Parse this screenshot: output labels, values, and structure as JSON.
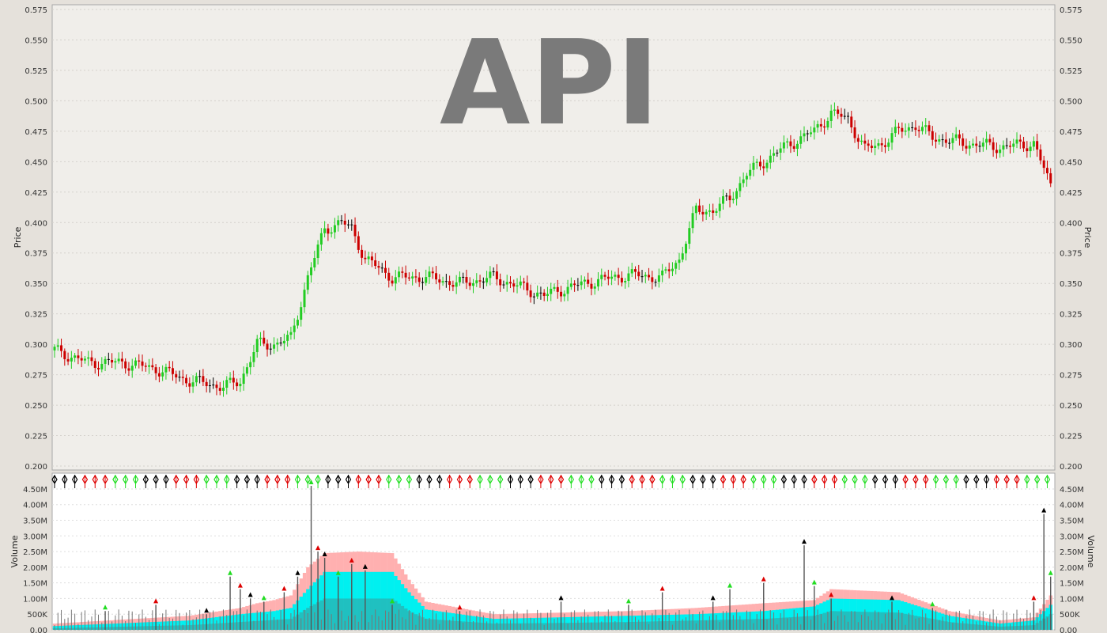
{
  "chart_data": [
    {
      "type": "candlestick",
      "title": "API",
      "ylabel": "Price",
      "ylim": [
        0.2,
        0.575
      ],
      "yticks": [
        "0.200",
        "0.225",
        "0.250",
        "0.275",
        "0.300",
        "0.325",
        "0.350",
        "0.375",
        "0.400",
        "0.425",
        "0.450",
        "0.475",
        "0.500",
        "0.525",
        "0.550",
        "0.575"
      ],
      "grid": true,
      "colors": {
        "up": "#22cc22",
        "down": "#cc0000",
        "flat": "#000000",
        "background": "#f0eeea",
        "grid": "#cccccc"
      },
      "anchors": [
        [
          0,
          0.295
        ],
        [
          10,
          0.285
        ],
        [
          20,
          0.285
        ],
        [
          30,
          0.28
        ],
        [
          35,
          0.275
        ],
        [
          40,
          0.27
        ],
        [
          45,
          0.268
        ],
        [
          50,
          0.265
        ],
        [
          55,
          0.27
        ],
        [
          60,
          0.3
        ],
        [
          65,
          0.3
        ],
        [
          70,
          0.305
        ],
        [
          75,
          0.355
        ],
        [
          80,
          0.395
        ],
        [
          85,
          0.4
        ],
        [
          88,
          0.395
        ],
        [
          92,
          0.37
        ],
        [
          100,
          0.355
        ],
        [
          110,
          0.355
        ],
        [
          120,
          0.35
        ],
        [
          130,
          0.355
        ],
        [
          140,
          0.345
        ],
        [
          145,
          0.34
        ],
        [
          150,
          0.345
        ],
        [
          160,
          0.352
        ],
        [
          170,
          0.357
        ],
        [
          180,
          0.355
        ],
        [
          185,
          0.37
        ],
        [
          190,
          0.41
        ],
        [
          195,
          0.41
        ],
        [
          200,
          0.42
        ],
        [
          205,
          0.44
        ],
        [
          210,
          0.45
        ],
        [
          215,
          0.46
        ],
        [
          220,
          0.468
        ],
        [
          225,
          0.475
        ],
        [
          230,
          0.49
        ],
        [
          235,
          0.485
        ],
        [
          240,
          0.46
        ],
        [
          245,
          0.465
        ],
        [
          250,
          0.475
        ],
        [
          255,
          0.48
        ],
        [
          260,
          0.47
        ],
        [
          270,
          0.465
        ],
        [
          280,
          0.462
        ],
        [
          290,
          0.465
        ],
        [
          295,
          0.43
        ]
      ],
      "bars": 296
    },
    {
      "type": "bar",
      "ylabel": "Volume",
      "ylim": [
        0,
        4.6
      ],
      "yticks": [
        "0.00",
        "500K",
        "1.00M",
        "1.50M",
        "2.00M",
        "2.50M",
        "3.00M",
        "3.50M",
        "4.00M",
        "4.50M"
      ],
      "grid": true,
      "series": [
        {
          "role": "band-upper",
          "color": "#ffb0b0",
          "anchors": [
            [
              0,
              0.2
            ],
            [
              40,
              0.45
            ],
            [
              55,
              0.7
            ],
            [
              60,
              0.85
            ],
            [
              65,
              0.95
            ],
            [
              70,
              1.1
            ],
            [
              75,
              2.0
            ],
            [
              80,
              2.45
            ],
            [
              90,
              2.5
            ],
            [
              100,
              2.45
            ],
            [
              105,
              1.6
            ],
            [
              110,
              0.9
            ],
            [
              130,
              0.5
            ],
            [
              150,
              0.55
            ],
            [
              170,
              0.6
            ],
            [
              190,
              0.7
            ],
            [
              210,
              0.85
            ],
            [
              225,
              0.95
            ],
            [
              230,
              1.3
            ],
            [
              250,
              1.2
            ],
            [
              265,
              0.6
            ],
            [
              280,
              0.3
            ],
            [
              290,
              0.4
            ],
            [
              295,
              1.1
            ]
          ]
        },
        {
          "role": "band-mid",
          "color": "#00f0f0",
          "anchors": [
            [
              0,
              0.12
            ],
            [
              40,
              0.3
            ],
            [
              55,
              0.5
            ],
            [
              65,
              0.6
            ],
            [
              70,
              0.7
            ],
            [
              75,
              1.3
            ],
            [
              80,
              1.85
            ],
            [
              100,
              1.85
            ],
            [
              105,
              1.2
            ],
            [
              110,
              0.65
            ],
            [
              130,
              0.35
            ],
            [
              150,
              0.4
            ],
            [
              170,
              0.45
            ],
            [
              190,
              0.5
            ],
            [
              210,
              0.6
            ],
            [
              225,
              0.75
            ],
            [
              230,
              1.0
            ],
            [
              250,
              0.95
            ],
            [
              265,
              0.45
            ],
            [
              280,
              0.2
            ],
            [
              290,
              0.3
            ],
            [
              295,
              0.8
            ]
          ]
        },
        {
          "role": "band-lower",
          "color": "#20c0c0",
          "anchors": [
            [
              0,
              0.05
            ],
            [
              40,
              0.15
            ],
            [
              55,
              0.25
            ],
            [
              70,
              0.35
            ],
            [
              75,
              0.7
            ],
            [
              80,
              1.0
            ],
            [
              100,
              1.0
            ],
            [
              105,
              0.6
            ],
            [
              110,
              0.35
            ],
            [
              130,
              0.2
            ],
            [
              150,
              0.22
            ],
            [
              170,
              0.25
            ],
            [
              190,
              0.3
            ],
            [
              210,
              0.35
            ],
            [
              225,
              0.45
            ],
            [
              230,
              0.6
            ],
            [
              250,
              0.55
            ],
            [
              265,
              0.25
            ],
            [
              280,
              0.1
            ],
            [
              290,
              0.15
            ],
            [
              295,
              0.5
            ]
          ]
        }
      ],
      "spikes": [
        [
          15,
          0.6
        ],
        [
          30,
          0.8
        ],
        [
          45,
          0.5
        ],
        [
          52,
          1.7
        ],
        [
          55,
          1.3
        ],
        [
          58,
          1.0
        ],
        [
          62,
          0.9
        ],
        [
          68,
          1.2
        ],
        [
          72,
          1.7
        ],
        [
          76,
          4.6
        ],
        [
          78,
          2.5
        ],
        [
          80,
          2.3
        ],
        [
          84,
          1.7
        ],
        [
          88,
          2.1
        ],
        [
          92,
          1.9
        ],
        [
          100,
          0.8
        ],
        [
          120,
          0.6
        ],
        [
          150,
          0.9
        ],
        [
          170,
          0.8
        ],
        [
          180,
          1.2
        ],
        [
          195,
          0.9
        ],
        [
          200,
          1.3
        ],
        [
          210,
          1.5
        ],
        [
          222,
          2.7
        ],
        [
          225,
          1.4
        ],
        [
          230,
          1.0
        ],
        [
          248,
          0.9
        ],
        [
          260,
          0.7
        ],
        [
          290,
          0.9
        ],
        [
          293,
          3.7
        ],
        [
          295,
          1.7
        ]
      ]
    }
  ]
}
